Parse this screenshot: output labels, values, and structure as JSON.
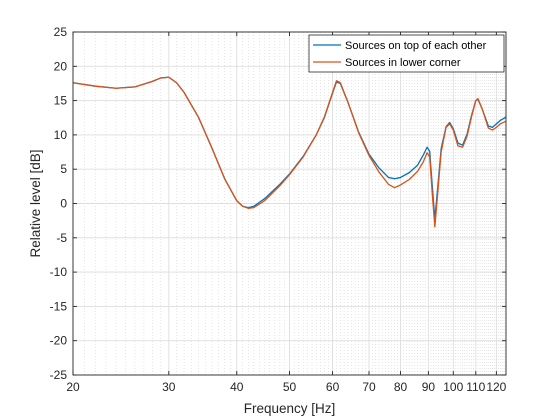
{
  "chart_data": {
    "type": "line",
    "xlabel": "Frequency [Hz]",
    "ylabel": "Relative level [dB]",
    "xscale": "log",
    "xlim": [
      20,
      125
    ],
    "ylim": [
      -25,
      25
    ],
    "grid": true,
    "minor_grid": true,
    "legend_position": "top-right",
    "x_tick_labels": [
      "20",
      "30",
      "40",
      "50",
      "60",
      "70",
      "80",
      "90",
      "100",
      "110",
      "120"
    ],
    "y_tick_labels": [
      "25",
      "20",
      "15",
      "10",
      "5",
      "0",
      "-5",
      "-10",
      "-15",
      "-20",
      "-25"
    ],
    "series": [
      {
        "name": "Sources on top of each other",
        "color": "#0072BD",
        "points": [
          [
            20,
            17.6
          ],
          [
            22,
            17.1
          ],
          [
            24,
            16.8
          ],
          [
            26,
            17.0
          ],
          [
            28,
            17.8
          ],
          [
            29,
            18.3
          ],
          [
            30,
            18.4
          ],
          [
            31,
            17.6
          ],
          [
            32,
            16.2
          ],
          [
            34,
            12.6
          ],
          [
            36,
            8.1
          ],
          [
            38,
            3.6
          ],
          [
            40,
            0.4
          ],
          [
            41,
            -0.4
          ],
          [
            42,
            -0.6
          ],
          [
            43,
            -0.4
          ],
          [
            45,
            0.7
          ],
          [
            48,
            2.8
          ],
          [
            50,
            4.3
          ],
          [
            53,
            6.9
          ],
          [
            56,
            10.0
          ],
          [
            58,
            12.6
          ],
          [
            60,
            16.1
          ],
          [
            61,
            17.7
          ],
          [
            62,
            17.5
          ],
          [
            64,
            14.8
          ],
          [
            67,
            10.4
          ],
          [
            70,
            7.2
          ],
          [
            73,
            5.2
          ],
          [
            76,
            3.8
          ],
          [
            78,
            3.6
          ],
          [
            80,
            3.8
          ],
          [
            83,
            4.5
          ],
          [
            86,
            5.6
          ],
          [
            88,
            7.0
          ],
          [
            89.5,
            8.2
          ],
          [
            90.5,
            7.6
          ],
          [
            91.5,
            2.5
          ],
          [
            92.5,
            -2.3
          ],
          [
            93.5,
            1.8
          ],
          [
            95,
            8.0
          ],
          [
            97,
            11.2
          ],
          [
            98.5,
            11.8
          ],
          [
            100,
            10.9
          ],
          [
            102,
            8.8
          ],
          [
            104,
            8.5
          ],
          [
            106,
            10.1
          ],
          [
            108,
            12.8
          ],
          [
            110,
            15.0
          ],
          [
            111,
            15.2
          ],
          [
            113,
            13.8
          ],
          [
            116,
            11.3
          ],
          [
            118,
            11.1
          ],
          [
            120,
            11.6
          ],
          [
            122,
            12.1
          ],
          [
            125,
            12.6
          ]
        ]
      },
      {
        "name": "Sources in lower corner",
        "color": "#D95319",
        "points": [
          [
            20,
            17.6
          ],
          [
            22,
            17.1
          ],
          [
            24,
            16.8
          ],
          [
            26,
            17.0
          ],
          [
            28,
            17.8
          ],
          [
            29,
            18.3
          ],
          [
            30,
            18.4
          ],
          [
            31,
            17.6
          ],
          [
            32,
            16.2
          ],
          [
            34,
            12.6
          ],
          [
            36,
            8.1
          ],
          [
            38,
            3.6
          ],
          [
            40,
            0.4
          ],
          [
            41,
            -0.4
          ],
          [
            42,
            -0.7
          ],
          [
            43,
            -0.6
          ],
          [
            45,
            0.4
          ],
          [
            48,
            2.6
          ],
          [
            50,
            4.2
          ],
          [
            53,
            6.8
          ],
          [
            56,
            10.0
          ],
          [
            58,
            12.7
          ],
          [
            60,
            16.2
          ],
          [
            61,
            17.9
          ],
          [
            62,
            17.6
          ],
          [
            64,
            14.8
          ],
          [
            67,
            10.3
          ],
          [
            70,
            7.0
          ],
          [
            73,
            4.6
          ],
          [
            76,
            2.8
          ],
          [
            78,
            2.3
          ],
          [
            80,
            2.7
          ],
          [
            83,
            3.5
          ],
          [
            86,
            4.7
          ],
          [
            88,
            6.0
          ],
          [
            89.5,
            7.4
          ],
          [
            90.5,
            6.8
          ],
          [
            91.5,
            1.4
          ],
          [
            92.5,
            -3.4
          ],
          [
            93.5,
            1.0
          ],
          [
            95,
            7.5
          ],
          [
            97,
            11.1
          ],
          [
            98.5,
            11.6
          ],
          [
            100,
            10.7
          ],
          [
            102,
            8.4
          ],
          [
            104,
            8.2
          ],
          [
            106,
            9.8
          ],
          [
            108,
            12.6
          ],
          [
            110,
            15.0
          ],
          [
            111,
            15.3
          ],
          [
            113,
            13.8
          ],
          [
            116,
            11.0
          ],
          [
            118,
            10.7
          ],
          [
            120,
            11.1
          ],
          [
            122,
            11.6
          ],
          [
            125,
            12.0
          ]
        ]
      }
    ]
  }
}
